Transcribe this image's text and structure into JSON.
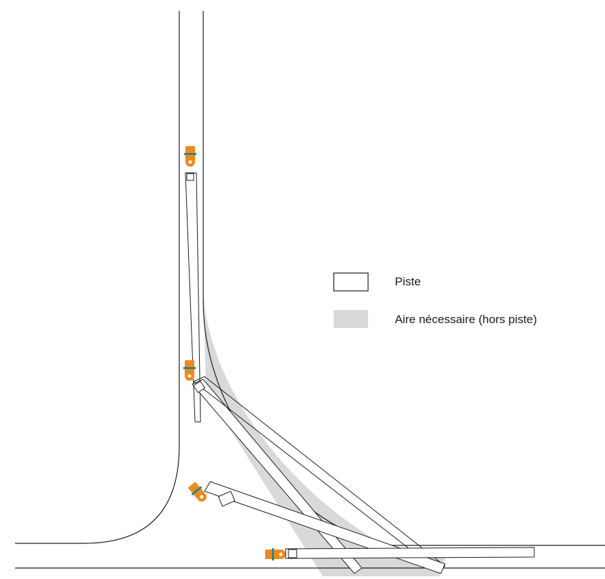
{
  "legend": {
    "items": [
      {
        "label": "Piste",
        "swatch": "outline"
      },
      {
        "label": "Aire nécessaire (hors piste)",
        "swatch": "filled"
      }
    ]
  },
  "colors": {
    "track_line": "#1a1a1a",
    "required_area": "#d9d9d9",
    "vehicle_body": "#ee8a1f",
    "vehicle_accent": "#2b8a7e"
  },
  "vehicle_positions": [
    {
      "id": "position-1",
      "orientation": "vertical"
    },
    {
      "id": "position-2",
      "orientation": "diagonal"
    },
    {
      "id": "position-3",
      "orientation": "shallow-diagonal"
    },
    {
      "id": "position-4",
      "orientation": "horizontal"
    }
  ],
  "icons": {
    "vehicle": "tractor-with-trailer-icon"
  }
}
